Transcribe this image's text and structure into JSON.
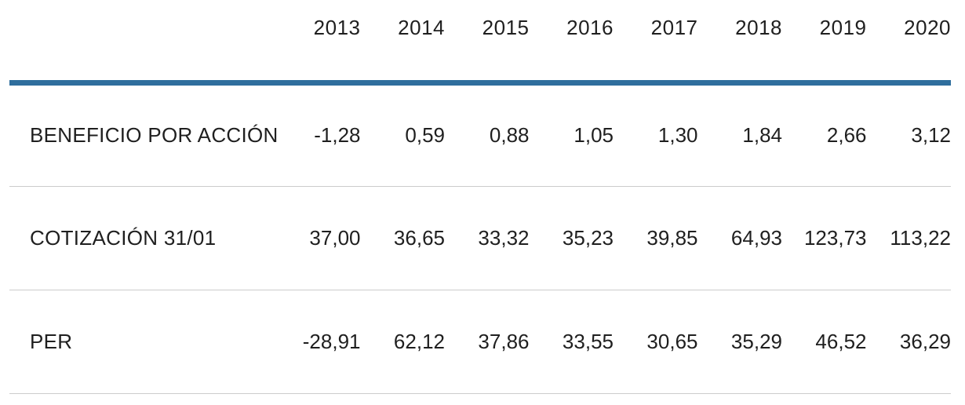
{
  "table": {
    "columns": [
      "2013",
      "2014",
      "2015",
      "2016",
      "2017",
      "2018",
      "2019",
      "2020"
    ],
    "rows": [
      {
        "label": "BENEFICIO POR ACCIÓN",
        "values": [
          "-1,28",
          "0,59",
          "0,88",
          "1,05",
          "1,30",
          "1,84",
          "2,66",
          "3,12"
        ]
      },
      {
        "label": "COTIZACIÓN 31/01",
        "values": [
          "37,00",
          "36,65",
          "33,32",
          "35,23",
          "39,85",
          "64,93",
          "123,73",
          "113,22"
        ]
      },
      {
        "label": "PER",
        "values": [
          "-28,91",
          "62,12",
          "37,86",
          "33,55",
          "30,65",
          "35,29",
          "46,52",
          "36,29"
        ]
      }
    ]
  },
  "chart_data": {
    "type": "table",
    "categories": [
      "2013",
      "2014",
      "2015",
      "2016",
      "2017",
      "2018",
      "2019",
      "2020"
    ],
    "series": [
      {
        "name": "BENEFICIO POR ACCIÓN",
        "values": [
          -1.28,
          0.59,
          0.88,
          1.05,
          1.3,
          1.84,
          2.66,
          3.12
        ]
      },
      {
        "name": "COTIZACIÓN 31/01",
        "values": [
          37.0,
          36.65,
          33.32,
          35.23,
          39.85,
          64.93,
          123.73,
          113.22
        ]
      },
      {
        "name": "PER",
        "values": [
          -28.91,
          62.12,
          37.86,
          33.55,
          30.65,
          35.29,
          46.52,
          36.29
        ]
      }
    ],
    "number_format": "es-ES (comma decimal separator)",
    "layout": {
      "grid": "horizontal row dividers only",
      "header_rule_color": "#2f6e9d"
    }
  },
  "colors": {
    "header_rule": "#2f6e9d",
    "row_divider": "#cccccc",
    "text": "#1f1f1f",
    "background": "#ffffff"
  }
}
